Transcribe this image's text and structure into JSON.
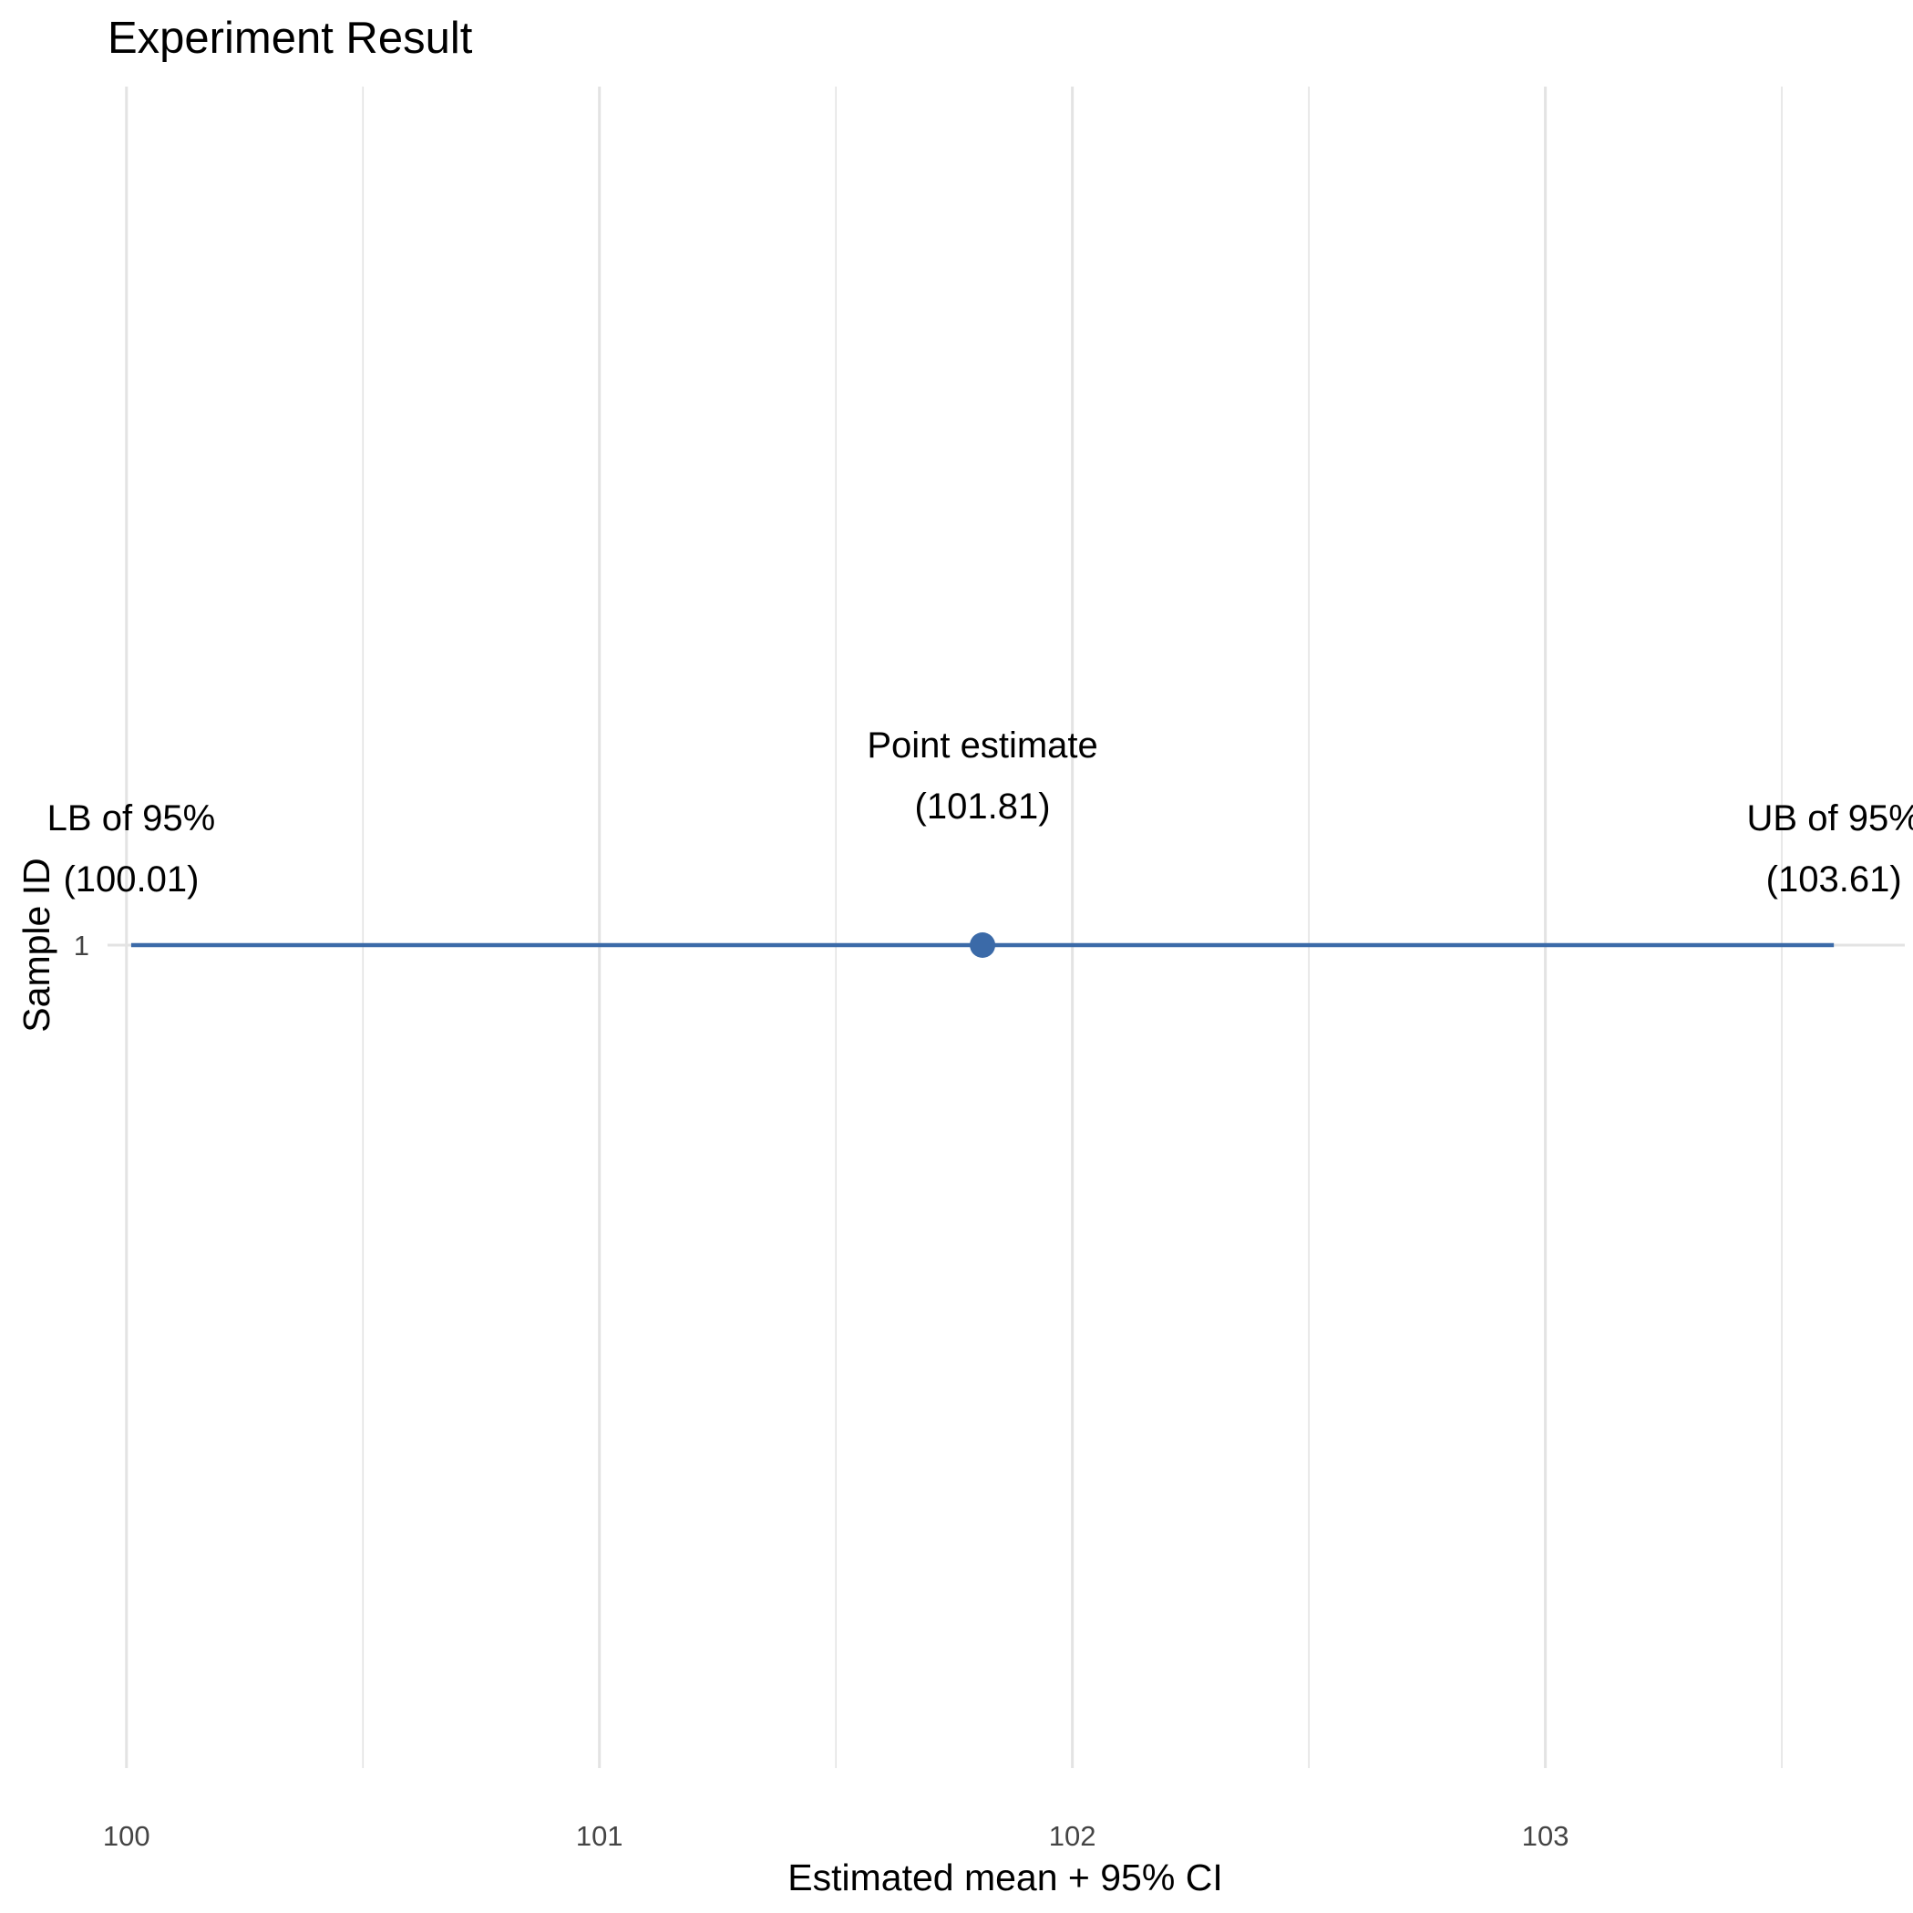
{
  "chart_data": {
    "type": "scatter",
    "title": "Experiment Result",
    "xlabel": "Estimated mean + 95% CI",
    "ylabel": "Sample ID",
    "xlim": [
      99.96,
      103.76
    ],
    "x_ticks": [
      100,
      101,
      102,
      103
    ],
    "x_tick_labels": [
      "100",
      "101",
      "102",
      "103"
    ],
    "x_minor_ticks": [
      100.5,
      101.5,
      102.5,
      103.5
    ],
    "y_categories": [
      "1"
    ],
    "grid": true,
    "series": [
      {
        "y": "1",
        "point_estimate": 101.81,
        "lower_bound": 100.01,
        "upper_bound": 103.61
      }
    ],
    "annotations": {
      "lower": {
        "line1": "LB of 95%",
        "line2": "(100.01)",
        "x": 100.01
      },
      "point": {
        "line1": "Point estimate",
        "line2": "(101.81)",
        "x": 101.81
      },
      "upper": {
        "line1": "UB of 95%",
        "line2": "(103.61)",
        "x": 103.61
      }
    },
    "colors": {
      "interval": "#3b6aa8",
      "point": "#3b6aa8",
      "grid": "#e3e3e3"
    }
  }
}
